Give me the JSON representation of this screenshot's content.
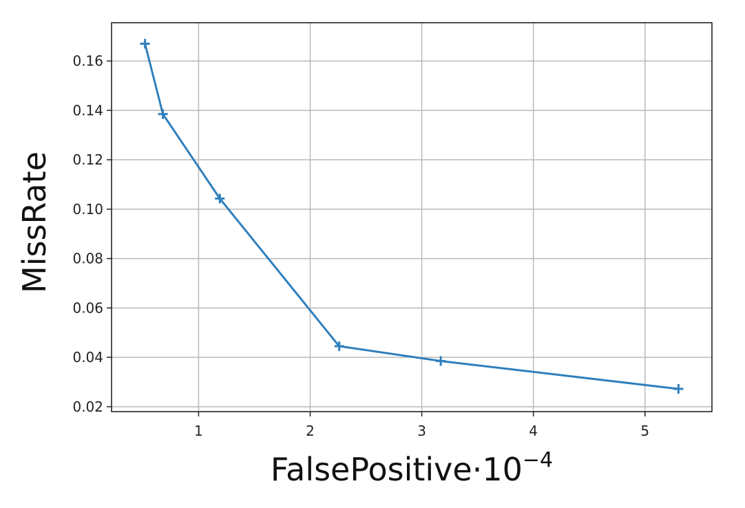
{
  "chart_data": {
    "type": "line",
    "title": "",
    "xlabel": "FalsePositive·10",
    "xlabel_exponent": "−4",
    "ylabel": "MissRate",
    "xlim": [
      0.22,
      5.6
    ],
    "ylim": [
      0.018,
      0.1755
    ],
    "x_ticks": [
      1,
      2,
      3,
      4,
      5
    ],
    "x_tick_labels": [
      "1",
      "2",
      "3",
      "4",
      "5"
    ],
    "y_ticks": [
      0.02,
      0.04,
      0.06,
      0.08,
      0.1,
      0.12,
      0.14,
      0.16
    ],
    "y_tick_labels": [
      "0.02",
      "0.04",
      "0.06",
      "0.08",
      "0.10",
      "0.12",
      "0.14",
      "0.16"
    ],
    "grid": true,
    "marker": "plus",
    "series": [
      {
        "color": "#2f7fbd",
        "x": [
          0.52,
          0.68,
          1.19,
          2.26,
          3.17,
          5.3
        ],
        "y": [
          0.167,
          0.1385,
          0.1043,
          0.0445,
          0.0385,
          0.0272
        ]
      }
    ]
  }
}
